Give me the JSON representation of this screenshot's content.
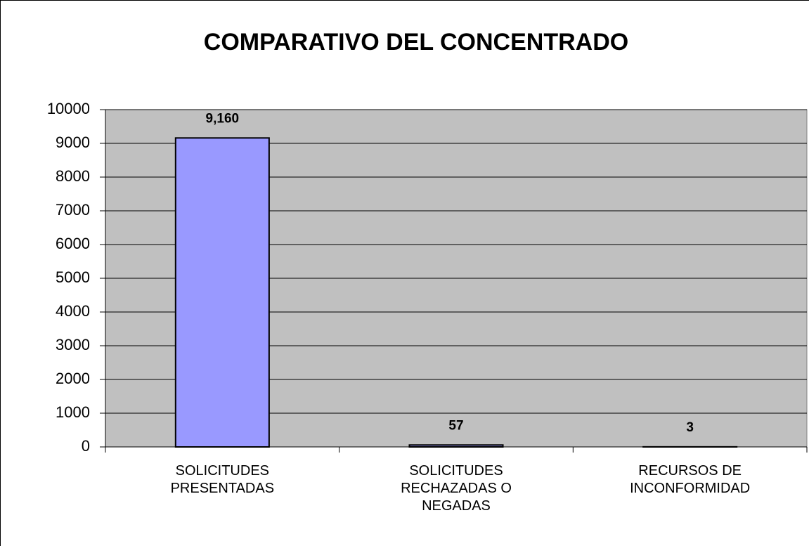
{
  "chart_data": {
    "type": "bar",
    "title": "COMPARATIVO DEL CONCENTRADO",
    "categories": [
      "SOLICITUDES PRESENTADAS",
      "SOLICITUDES RECHAZADAS O NEGADAS",
      "RECURSOS DE INCONFORMIDAD"
    ],
    "values": [
      9160,
      57,
      3
    ],
    "value_labels": [
      "9,160",
      "57",
      "3"
    ],
    "color": "#9999ff",
    "plot_background": "#c0c0c0",
    "ylim": [
      0,
      10000
    ],
    "yticks": [
      0,
      1000,
      2000,
      3000,
      4000,
      5000,
      6000,
      7000,
      8000,
      9000,
      10000
    ],
    "grid": true
  }
}
